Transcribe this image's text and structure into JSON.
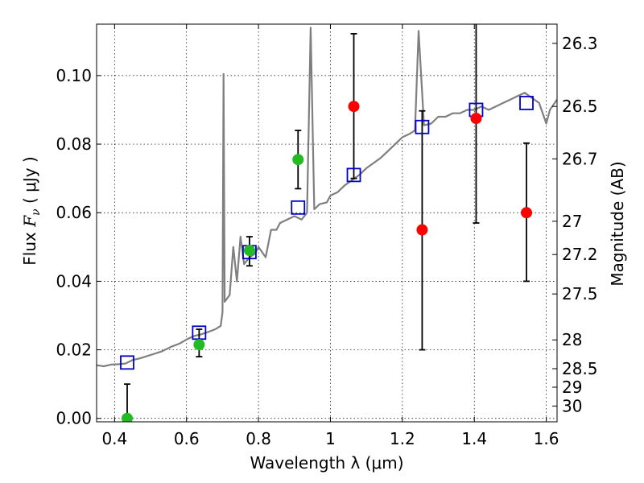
{
  "chart_data": {
    "type": "scatter",
    "xlabel": "Wavelength  λ (μm)",
    "ylabel": {
      "prefix": "Flux ",
      "symbol": "F",
      "subscript": "ν",
      "unit": " ( μJy )"
    },
    "right_label": "Magnitude (AB)",
    "xlim": [
      0.35,
      1.63
    ],
    "ylim": [
      -0.001,
      0.115
    ],
    "x_ticks": [
      0.4,
      0.6,
      0.8,
      1.0,
      1.2,
      1.4,
      1.6
    ],
    "x_tick_labels": [
      "0.4",
      "0.6",
      "0.8",
      "1",
      "1.2",
      "1.4",
      "1.6"
    ],
    "y_ticks": [
      0.0,
      0.02,
      0.04,
      0.06,
      0.08,
      0.1
    ],
    "y_tick_labels": [
      "0.00",
      "0.02",
      "0.04",
      "0.06",
      "0.08",
      "0.10"
    ],
    "right_ticks": [
      {
        "label": "26.3",
        "flux": 0.1094
      },
      {
        "label": "26.5",
        "flux": 0.091
      },
      {
        "label": "26.7",
        "flux": 0.0757
      },
      {
        "label": "27",
        "flux": 0.0575
      },
      {
        "label": "27.2",
        "flux": 0.0478
      },
      {
        "label": "27.5",
        "flux": 0.0363
      },
      {
        "label": "28",
        "flux": 0.0229
      },
      {
        "label": "28.5",
        "flux": 0.0145
      },
      {
        "label": "29",
        "flux": 0.0091
      },
      {
        "label": "30",
        "flux": 0.0036
      }
    ],
    "grid": true,
    "colors": {
      "model": "#7f7f7f",
      "optical": "#22bb22",
      "nir": "#ff0000",
      "synthetic": "#0000cc",
      "errorbar": "#000000"
    },
    "model_spectrum": [
      [
        0.35,
        0.0155
      ],
      [
        0.37,
        0.0152
      ],
      [
        0.39,
        0.0157
      ],
      [
        0.41,
        0.0158
      ],
      [
        0.43,
        0.016
      ],
      [
        0.45,
        0.017
      ],
      [
        0.47,
        0.0175
      ],
      [
        0.5,
        0.0185
      ],
      [
        0.53,
        0.0195
      ],
      [
        0.56,
        0.021
      ],
      [
        0.58,
        0.0218
      ],
      [
        0.6,
        0.023
      ],
      [
        0.62,
        0.024
      ],
      [
        0.64,
        0.0245
      ],
      [
        0.66,
        0.0252
      ],
      [
        0.68,
        0.026
      ],
      [
        0.695,
        0.027
      ],
      [
        0.7,
        0.031
      ],
      [
        0.703,
        0.1005
      ],
      [
        0.706,
        0.034
      ],
      [
        0.72,
        0.036
      ],
      [
        0.73,
        0.05
      ],
      [
        0.74,
        0.04
      ],
      [
        0.75,
        0.053
      ],
      [
        0.76,
        0.045
      ],
      [
        0.775,
        0.047
      ],
      [
        0.79,
        0.048
      ],
      [
        0.8,
        0.05
      ],
      [
        0.82,
        0.047
      ],
      [
        0.835,
        0.055
      ],
      [
        0.85,
        0.055
      ],
      [
        0.86,
        0.057
      ],
      [
        0.88,
        0.058
      ],
      [
        0.9,
        0.059
      ],
      [
        0.92,
        0.058
      ],
      [
        0.935,
        0.06
      ],
      [
        0.945,
        0.114
      ],
      [
        0.955,
        0.061
      ],
      [
        0.97,
        0.0625
      ],
      [
        0.99,
        0.063
      ],
      [
        1.0,
        0.065
      ],
      [
        1.02,
        0.066
      ],
      [
        1.04,
        0.068
      ],
      [
        1.06,
        0.0695
      ],
      [
        1.08,
        0.071
      ],
      [
        1.1,
        0.073
      ],
      [
        1.12,
        0.0745
      ],
      [
        1.14,
        0.076
      ],
      [
        1.16,
        0.078
      ],
      [
        1.18,
        0.08
      ],
      [
        1.2,
        0.082
      ],
      [
        1.22,
        0.083
      ],
      [
        1.235,
        0.084
      ],
      [
        1.245,
        0.113
      ],
      [
        1.26,
        0.0855
      ],
      [
        1.28,
        0.086
      ],
      [
        1.3,
        0.088
      ],
      [
        1.32,
        0.088
      ],
      [
        1.34,
        0.089
      ],
      [
        1.36,
        0.089
      ],
      [
        1.38,
        0.09
      ],
      [
        1.4,
        0.09
      ],
      [
        1.42,
        0.091
      ],
      [
        1.44,
        0.09
      ],
      [
        1.46,
        0.091
      ],
      [
        1.48,
        0.092
      ],
      [
        1.5,
        0.093
      ],
      [
        1.52,
        0.094
      ],
      [
        1.54,
        0.095
      ],
      [
        1.56,
        0.0935
      ],
      [
        1.58,
        0.092
      ],
      [
        1.6,
        0.086
      ],
      [
        1.61,
        0.09
      ],
      [
        1.63,
        0.093
      ]
    ],
    "optical_photometry": [
      {
        "x": 0.435,
        "y": 0.0,
        "err_low": 0.0,
        "err_high": 0.01
      },
      {
        "x": 0.635,
        "y": 0.0215,
        "err_low": 0.018,
        "err_high": 0.026
      },
      {
        "x": 0.775,
        "y": 0.049,
        "err_low": 0.0445,
        "err_high": 0.053
      },
      {
        "x": 0.91,
        "y": 0.0755,
        "err_low": 0.067,
        "err_high": 0.084
      }
    ],
    "nir_photometry": [
      {
        "x": 1.065,
        "y": 0.091,
        "err_low": 0.07,
        "err_high": 0.1122
      },
      {
        "x": 1.255,
        "y": 0.055,
        "err_low": 0.02,
        "err_high": 0.0897
      },
      {
        "x": 1.405,
        "y": 0.0875,
        "err_low": 0.057,
        "err_high": 0.118
      },
      {
        "x": 1.545,
        "y": 0.06,
        "err_low": 0.04,
        "err_high": 0.0803
      }
    ],
    "synthetic_photometry": [
      {
        "x": 0.435,
        "y": 0.0163
      },
      {
        "x": 0.635,
        "y": 0.025
      },
      {
        "x": 0.775,
        "y": 0.0485
      },
      {
        "x": 0.91,
        "y": 0.0615
      },
      {
        "x": 1.065,
        "y": 0.071
      },
      {
        "x": 1.255,
        "y": 0.085
      },
      {
        "x": 1.405,
        "y": 0.09
      },
      {
        "x": 1.545,
        "y": 0.092
      }
    ]
  }
}
